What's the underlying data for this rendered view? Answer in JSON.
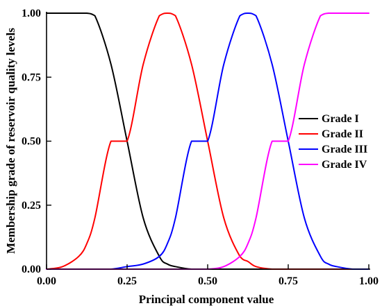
{
  "chart_data": {
    "type": "line",
    "xlabel": "Principal component value",
    "ylabel": "Membership grade of reservoir quality levels",
    "xlim": [
      0,
      1
    ],
    "ylim": [
      0,
      1
    ],
    "x_ticks": [
      "0.00",
      "0.25",
      "0.50",
      "0.75",
      "1.00"
    ],
    "y_ticks": [
      "0.00",
      "0.25",
      "0.50",
      "0.75",
      "1.00"
    ],
    "grid": false,
    "legend_position": "right",
    "x": [
      0.0,
      0.05,
      0.1,
      0.125,
      0.15,
      0.2,
      0.25,
      0.3,
      0.35,
      0.375,
      0.4,
      0.45,
      0.5,
      0.55,
      0.6,
      0.625,
      0.65,
      0.7,
      0.75,
      0.8,
      0.85,
      0.875,
      0.9,
      0.95,
      1.0
    ],
    "series": [
      {
        "name": "Grade I",
        "color": "#000000",
        "values": [
          1.0,
          1.0,
          1.0,
          1.0,
          0.99,
          0.8,
          0.5,
          0.2,
          0.05,
          0.02,
          0.01,
          0.0,
          0.0,
          0.0,
          0.0,
          0.0,
          0.0,
          0.0,
          0.0,
          0.0,
          0.0,
          0.0,
          0.0,
          0.0,
          0.0
        ]
      },
      {
        "name": "Grade II",
        "color": "#ff0000",
        "values": [
          0.0,
          0.01,
          0.05,
          0.1,
          0.2,
          0.5,
          0.5,
          0.8,
          0.99,
          1.0,
          0.99,
          0.8,
          0.5,
          0.2,
          0.05,
          0.03,
          0.01,
          0.0,
          0.0,
          0.0,
          0.0,
          0.0,
          0.0,
          0.0,
          0.0
        ]
      },
      {
        "name": "Grade III",
        "color": "#0000ff",
        "values": [
          0.0,
          0.0,
          0.0,
          0.0,
          0.0,
          0.0,
          0.01,
          0.02,
          0.05,
          0.1,
          0.2,
          0.5,
          0.5,
          0.8,
          0.99,
          1.0,
          0.99,
          0.8,
          0.5,
          0.2,
          0.05,
          0.02,
          0.01,
          0.0,
          0.0
        ]
      },
      {
        "name": "Grade IV",
        "color": "#ff00ff",
        "values": [
          0.0,
          0.0,
          0.0,
          0.0,
          0.0,
          0.0,
          0.0,
          0.0,
          0.0,
          0.0,
          0.0,
          0.0,
          0.0,
          0.01,
          0.05,
          0.1,
          0.2,
          0.5,
          0.5,
          0.8,
          0.99,
          1.0,
          1.0,
          1.0,
          1.0
        ]
      }
    ]
  }
}
